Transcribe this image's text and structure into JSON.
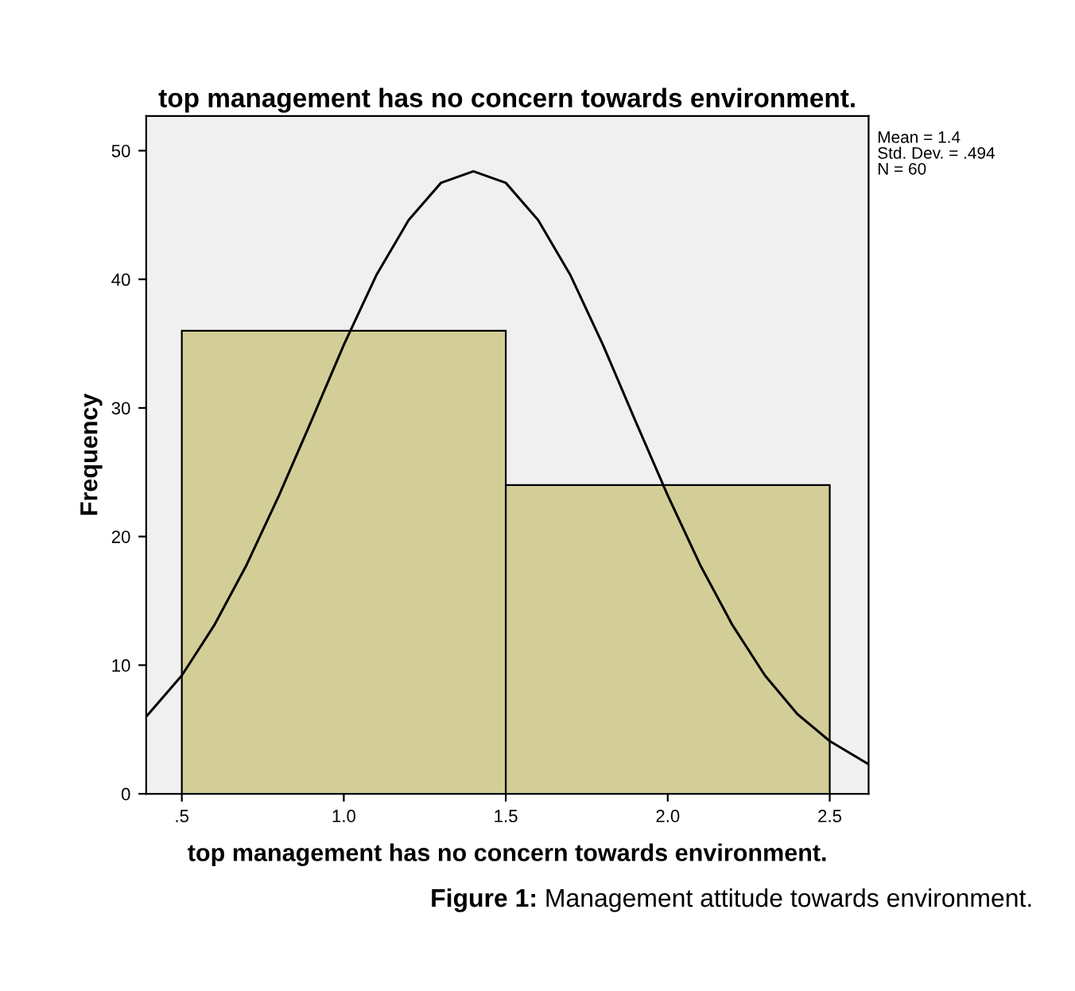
{
  "chart_data": {
    "type": "histogram",
    "title": "top management has no concern towards environment.",
    "xlabel": "top management has no concern towards environment.",
    "ylabel": "Frequency",
    "bins": [
      0.5,
      1.5,
      2.5
    ],
    "values": [
      36,
      24
    ],
    "color": "#d3ce98",
    "series": [
      {
        "type": "line",
        "color": "#000000",
        "x": [
          0.39,
          0.5,
          0.6,
          0.7,
          0.8,
          0.9,
          1.0,
          1.1,
          1.2,
          1.3,
          1.4,
          1.5,
          1.6,
          1.7,
          1.8,
          1.9,
          2.0,
          2.1,
          2.2,
          2.3,
          2.4,
          2.5,
          2.62
        ],
        "values": [
          6.0,
          9.2,
          13.1,
          17.8,
          23.2,
          29.0,
          34.9,
          40.3,
          44.6,
          47.5,
          48.4,
          47.5,
          44.6,
          40.3,
          34.9,
          29.0,
          23.2,
          17.8,
          13.1,
          9.2,
          6.2,
          4.1,
          2.3
        ]
      }
    ],
    "xlim": [
      0.39,
      2.62
    ],
    "ylim": [
      0,
      52.7
    ],
    "xticks": [
      {
        "value": 0.5,
        "label": ".5"
      },
      {
        "value": 1.0,
        "label": "1.0"
      },
      {
        "value": 1.5,
        "label": "1.5"
      },
      {
        "value": 2.0,
        "label": "2.0"
      },
      {
        "value": 2.5,
        "label": "2.5"
      }
    ],
    "yticks": [
      0,
      10,
      20,
      30,
      40,
      50
    ],
    "grid": false,
    "legend": false,
    "annotations": [
      "Mean = 1.4",
      "Std. Dev. = .494",
      "N = 60",
      "Figure 1: Management attitude towards environment."
    ]
  }
}
